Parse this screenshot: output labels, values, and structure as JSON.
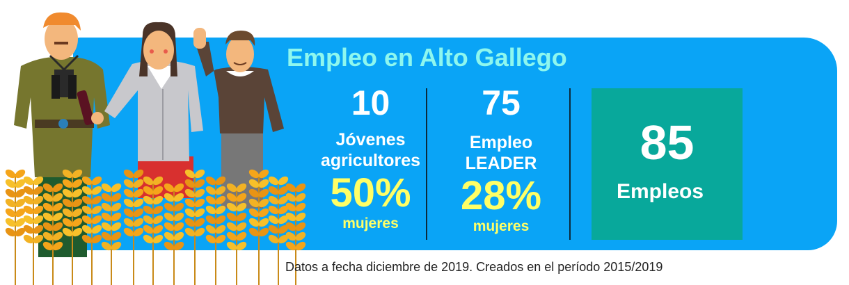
{
  "title": "Empleo en Alto Gallego",
  "stats": [
    {
      "number": "10",
      "label_line1": "Jóvenes",
      "label_line2": "agricultores",
      "percent": "50%",
      "percent_label": "mujeres"
    },
    {
      "number": "75",
      "label_line1": "Empleo",
      "label_line2": "LEADER",
      "percent": "28%",
      "percent_label": "mujeres"
    }
  ],
  "total": {
    "number": "85",
    "label": "Empleos"
  },
  "footnote": "Datos a fecha diciembre de 2019. Creados en el período 2015/2019",
  "colors": {
    "banner": "#0aa4f6",
    "title": "#8ef7ee",
    "highlight": "#ffff66",
    "total_box": "#08a89b"
  },
  "illustration": {
    "icon": "farmers-wheat-illustration"
  }
}
